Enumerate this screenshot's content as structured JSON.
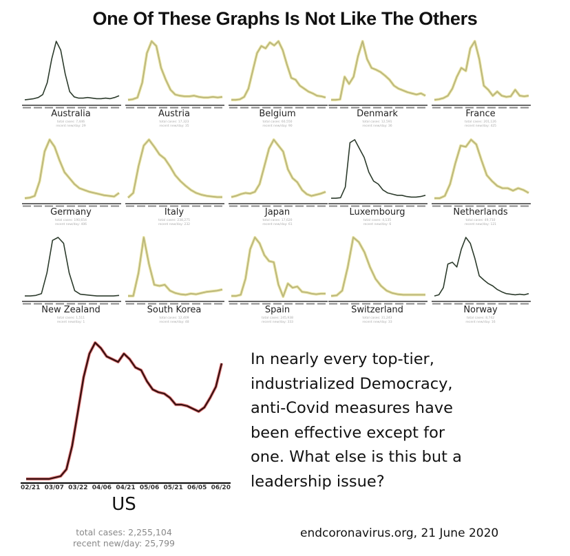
{
  "title": "One Of These Graphs Is Not Like The Others",
  "colors": {
    "dark_line": "#2b3a2b",
    "yellow_line": "#b5b27a",
    "yellow_glow": "#e8e2a0",
    "us_line": "#3a1010",
    "us_glow": "#e03030",
    "axis": "#333333"
  },
  "message": {
    "lines": [
      "In nearly every top-tier,",
      "industrialized Democracy,",
      "anti-Covid measures have",
      "been effective except for",
      "one. What else is this but a",
      "leadership issue?"
    ],
    "source": "endcoronavirus.org, 21 June 2020"
  },
  "chart_data": [
    {
      "type": "line",
      "title": "Australia",
      "style": "dark",
      "stats": [
        "total cases: 7,446",
        "recent new/day: 29"
      ],
      "y": [
        1,
        2,
        3,
        5,
        10,
        30,
        70,
        100,
        85,
        45,
        15,
        6,
        4,
        4,
        5,
        4,
        3,
        3,
        4,
        3,
        5,
        8
      ]
    },
    {
      "type": "line",
      "title": "Austria",
      "style": "yellow",
      "stats": [
        "total cases: 17,323",
        "recent new/day: 35"
      ],
      "y": [
        1,
        2,
        5,
        30,
        80,
        100,
        92,
        55,
        35,
        18,
        10,
        8,
        7,
        7,
        8,
        6,
        5,
        5,
        6,
        5,
        6
      ]
    },
    {
      "type": "line",
      "title": "Belgium",
      "style": "yellow",
      "stats": [
        "total cases: 60,550",
        "recent new/day: 90"
      ],
      "y": [
        1,
        1,
        2,
        6,
        20,
        50,
        80,
        92,
        88,
        98,
        93,
        100,
        85,
        60,
        38,
        35,
        25,
        20,
        15,
        12,
        8,
        7,
        5
      ]
    },
    {
      "type": "line",
      "title": "Denmark",
      "style": "yellow",
      "stats": [
        "total cases: 12,591",
        "recent new/day: 36"
      ],
      "y": [
        1,
        1,
        2,
        40,
        28,
        40,
        75,
        100,
        70,
        55,
        52,
        48,
        42,
        35,
        25,
        20,
        17,
        14,
        12,
        10,
        12,
        8
      ]
    },
    {
      "type": "line",
      "title": "France",
      "style": "yellow",
      "stats": [
        "total cases: 201,126",
        "recent new/day: 425"
      ],
      "y": [
        1,
        2,
        4,
        8,
        20,
        40,
        55,
        50,
        88,
        100,
        70,
        25,
        18,
        8,
        15,
        8,
        6,
        7,
        18,
        8,
        7,
        8
      ]
    },
    {
      "type": "line",
      "title": "Germany",
      "style": "yellow",
      "stats": [
        "total cases: 190,654",
        "recent new/day: 406"
      ],
      "y": [
        1,
        2,
        5,
        30,
        80,
        100,
        88,
        65,
        45,
        35,
        25,
        18,
        15,
        12,
        10,
        8,
        6,
        5,
        4,
        10
      ]
    },
    {
      "type": "line",
      "title": "Italy",
      "style": "yellow",
      "stats": [
        "total cases: 238,275",
        "recent new/day: 232"
      ],
      "y": [
        2,
        10,
        55,
        90,
        100,
        88,
        75,
        68,
        55,
        40,
        30,
        22,
        15,
        10,
        7,
        5,
        4,
        3,
        3
      ]
    },
    {
      "type": "line",
      "title": "Japan",
      "style": "yellow",
      "stats": [
        "total cases: 17,620",
        "recent new/day: 61"
      ],
      "y": [
        3,
        5,
        8,
        10,
        9,
        12,
        25,
        55,
        85,
        100,
        90,
        80,
        50,
        35,
        28,
        15,
        8,
        5,
        7,
        9,
        12
      ]
    },
    {
      "type": "line",
      "title": "Luxembourg",
      "style": "dark",
      "stats": [
        "total cases: 4,135",
        "recent new/day: 6"
      ],
      "y": [
        1,
        1,
        2,
        20,
        95,
        100,
        85,
        70,
        45,
        30,
        25,
        15,
        10,
        8,
        6,
        6,
        4,
        3,
        3,
        4,
        6
      ]
    },
    {
      "type": "line",
      "title": "Netherlands",
      "style": "yellow",
      "stats": [
        "total cases: 49,710",
        "recent new/day: 121"
      ],
      "y": [
        1,
        1,
        5,
        25,
        60,
        90,
        88,
        100,
        92,
        65,
        40,
        30,
        22,
        18,
        18,
        14,
        18,
        15,
        10
      ]
    },
    {
      "type": "line",
      "title": "New Zealand",
      "style": "dark",
      "stats": [
        "total cases: 1,511",
        "recent new/day: 1"
      ],
      "y": [
        1,
        1,
        2,
        5,
        40,
        95,
        100,
        90,
        40,
        10,
        4,
        3,
        2,
        1,
        1,
        1,
        1,
        2
      ]
    },
    {
      "type": "line",
      "title": "South Korea",
      "style": "yellow",
      "stats": [
        "total cases: 12,409",
        "recent new/day: 48"
      ],
      "y": [
        1,
        1,
        40,
        100,
        55,
        20,
        18,
        20,
        10,
        6,
        4,
        3,
        5,
        4,
        6,
        8,
        9,
        10,
        12
      ]
    },
    {
      "type": "line",
      "title": "Spain",
      "style": "yellow",
      "stats": [
        "total cases: 245,938",
        "recent new/day: 333"
      ],
      "y": [
        1,
        1,
        3,
        30,
        80,
        100,
        90,
        70,
        60,
        58,
        20,
        0,
        22,
        15,
        17,
        8,
        7,
        5,
        4,
        5,
        5
      ]
    },
    {
      "type": "line",
      "title": "Switzerland",
      "style": "yellow",
      "stats": [
        "total cases: 31,243",
        "recent new/day: 33"
      ],
      "y": [
        1,
        2,
        10,
        50,
        100,
        92,
        75,
        50,
        30,
        18,
        10,
        6,
        4,
        3,
        3,
        3,
        3,
        3
      ]
    },
    {
      "type": "line",
      "title": "Norway",
      "style": "dark",
      "stats": [
        "total cases: 8,742",
        "recent new/day: 16"
      ],
      "y": [
        1,
        3,
        15,
        55,
        58,
        50,
        80,
        100,
        90,
        65,
        35,
        28,
        22,
        18,
        12,
        8,
        5,
        4,
        3,
        4,
        3,
        5
      ]
    },
    {
      "type": "line",
      "title": "US",
      "style": "us",
      "stats": [
        "total cases: 2,255,104",
        "recent new/day: 25,799"
      ],
      "x_ticks": [
        "02/21",
        "03/07",
        "03/22",
        "04/06",
        "04/21",
        "05/06",
        "05/21",
        "06/05",
        "06/20"
      ],
      "y": [
        1,
        1,
        1,
        1,
        1,
        2,
        3,
        8,
        25,
        50,
        75,
        92,
        100,
        96,
        90,
        88,
        86,
        92,
        88,
        82,
        80,
        72,
        66,
        64,
        63,
        60,
        55,
        55,
        54,
        52,
        50,
        53,
        60,
        68,
        85
      ]
    }
  ]
}
